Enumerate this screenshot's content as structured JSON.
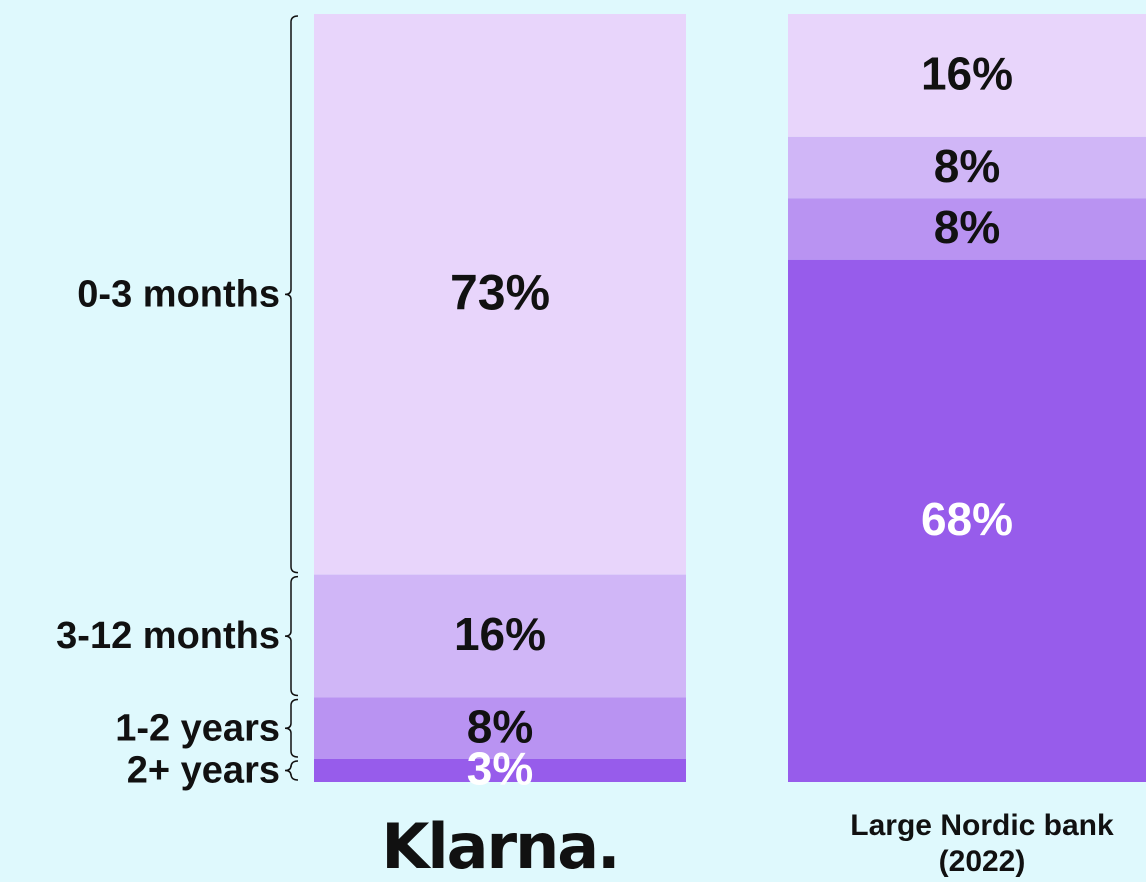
{
  "chart_data": {
    "type": "stacked_bar",
    "categories": [
      "Klarna.",
      "Large Nordic bank (2022)"
    ],
    "series": [
      {
        "name": "0-3 months",
        "color": "#e8d5fb",
        "values": [
          73,
          16
        ],
        "value_labels": [
          "73%",
          "16%"
        ]
      },
      {
        "name": "3-12 months",
        "color": "#d0b6f7",
        "values": [
          16,
          8
        ],
        "value_labels": [
          "16%",
          "8%"
        ]
      },
      {
        "name": "1-2 years",
        "color": "#b993f2",
        "values": [
          8,
          8
        ],
        "value_labels": [
          "8%",
          "8%"
        ]
      },
      {
        "name": "2+ years",
        "color": "#975ceb",
        "values": [
          3,
          68
        ],
        "value_labels": [
          "3%",
          "68%"
        ]
      }
    ]
  }
}
